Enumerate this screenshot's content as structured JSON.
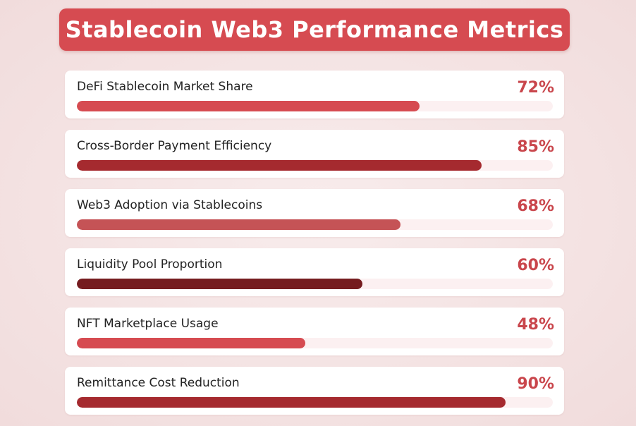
{
  "chart_data": {
    "type": "bar",
    "title": "Stablecoin Web3 Performance Metrics",
    "orientation": "horizontal",
    "unit": "%",
    "xlim": [
      0,
      100
    ],
    "metrics": [
      {
        "label": "DeFi Stablecoin Market Share",
        "value": 72,
        "value_text": "72%",
        "color": "#d64b51"
      },
      {
        "label": "Cross-Border Payment Efficiency",
        "value": 85,
        "value_text": "85%",
        "color": "#a52a2f"
      },
      {
        "label": "Web3 Adoption via Stablecoins",
        "value": 68,
        "value_text": "68%",
        "color": "#c55356"
      },
      {
        "label": "Liquidity Pool Proportion",
        "value": 60,
        "value_text": "60%",
        "color": "#751c1f"
      },
      {
        "label": "NFT Marketplace Usage",
        "value": 48,
        "value_text": "48%",
        "color": "#d64b51"
      },
      {
        "label": "Remittance Cost Reduction",
        "value": 90,
        "value_text": "90%",
        "color": "#a52a2f"
      }
    ]
  },
  "theme": {
    "banner_color": "#d64b51",
    "value_text_color": "#c9464c",
    "track_color": "#fcf0f1"
  }
}
